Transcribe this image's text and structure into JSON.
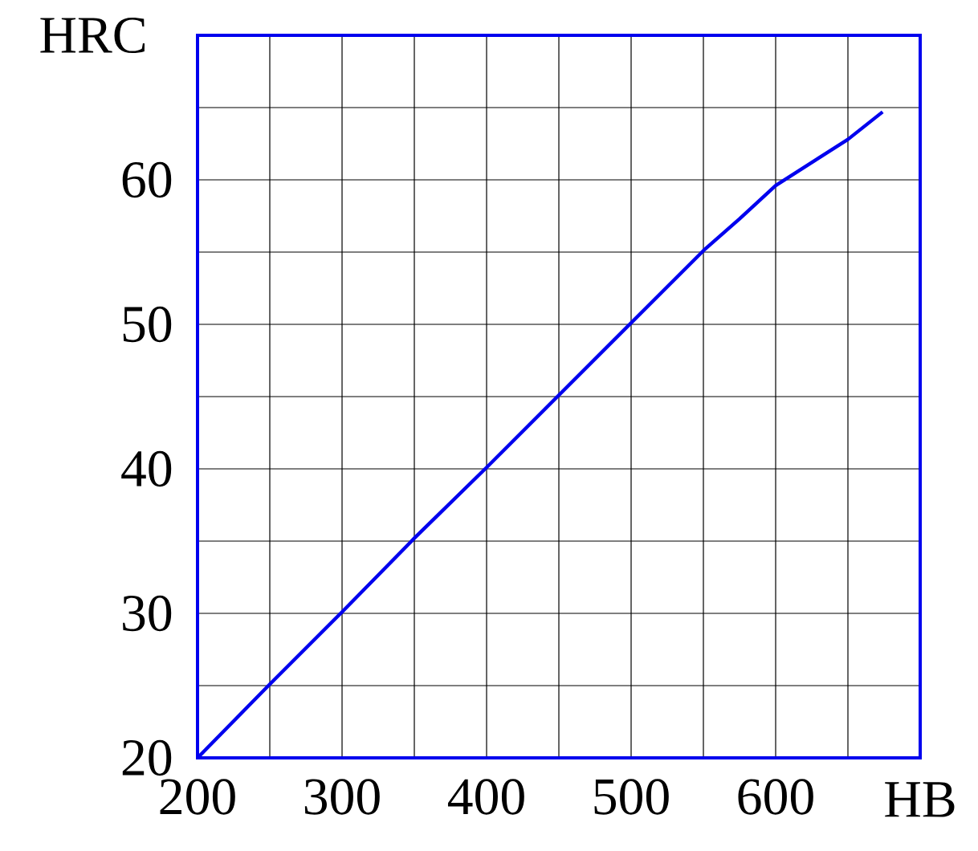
{
  "chart_data": {
    "type": "line",
    "xlabel": "HB",
    "ylabel": "HRC",
    "x": [
      200,
      250,
      300,
      350,
      400,
      450,
      500,
      550,
      575,
      600,
      650,
      674
    ],
    "series": [
      {
        "color": "#0000ee",
        "values": [
          20,
          25.1,
          30.1,
          35.2,
          40.1,
          45.1,
          50.1,
          55.1,
          57.3,
          59.6,
          62.8,
          64.7
        ]
      }
    ],
    "xlim": [
      200,
      700
    ],
    "ylim": [
      20,
      70
    ],
    "xticks": [
      200,
      {
        "value": 250,
        "label": null
      },
      300,
      {
        "value": 350,
        "label": null
      },
      400,
      {
        "value": 450,
        "label": null
      },
      500,
      {
        "value": 550,
        "label": null
      },
      600,
      {
        "value": 650,
        "label": null
      },
      {
        "value": 700,
        "label": null
      }
    ],
    "yticks": [
      20,
      {
        "value": 25,
        "label": null
      },
      30,
      {
        "value": 35,
        "label": null
      },
      40,
      {
        "value": 45,
        "label": null
      },
      50,
      {
        "value": 55,
        "label": null
      },
      60,
      {
        "value": 65,
        "label": null
      },
      {
        "value": 70,
        "label": null
      }
    ],
    "grid": true,
    "marker": "none",
    "line_style": "solid"
  }
}
